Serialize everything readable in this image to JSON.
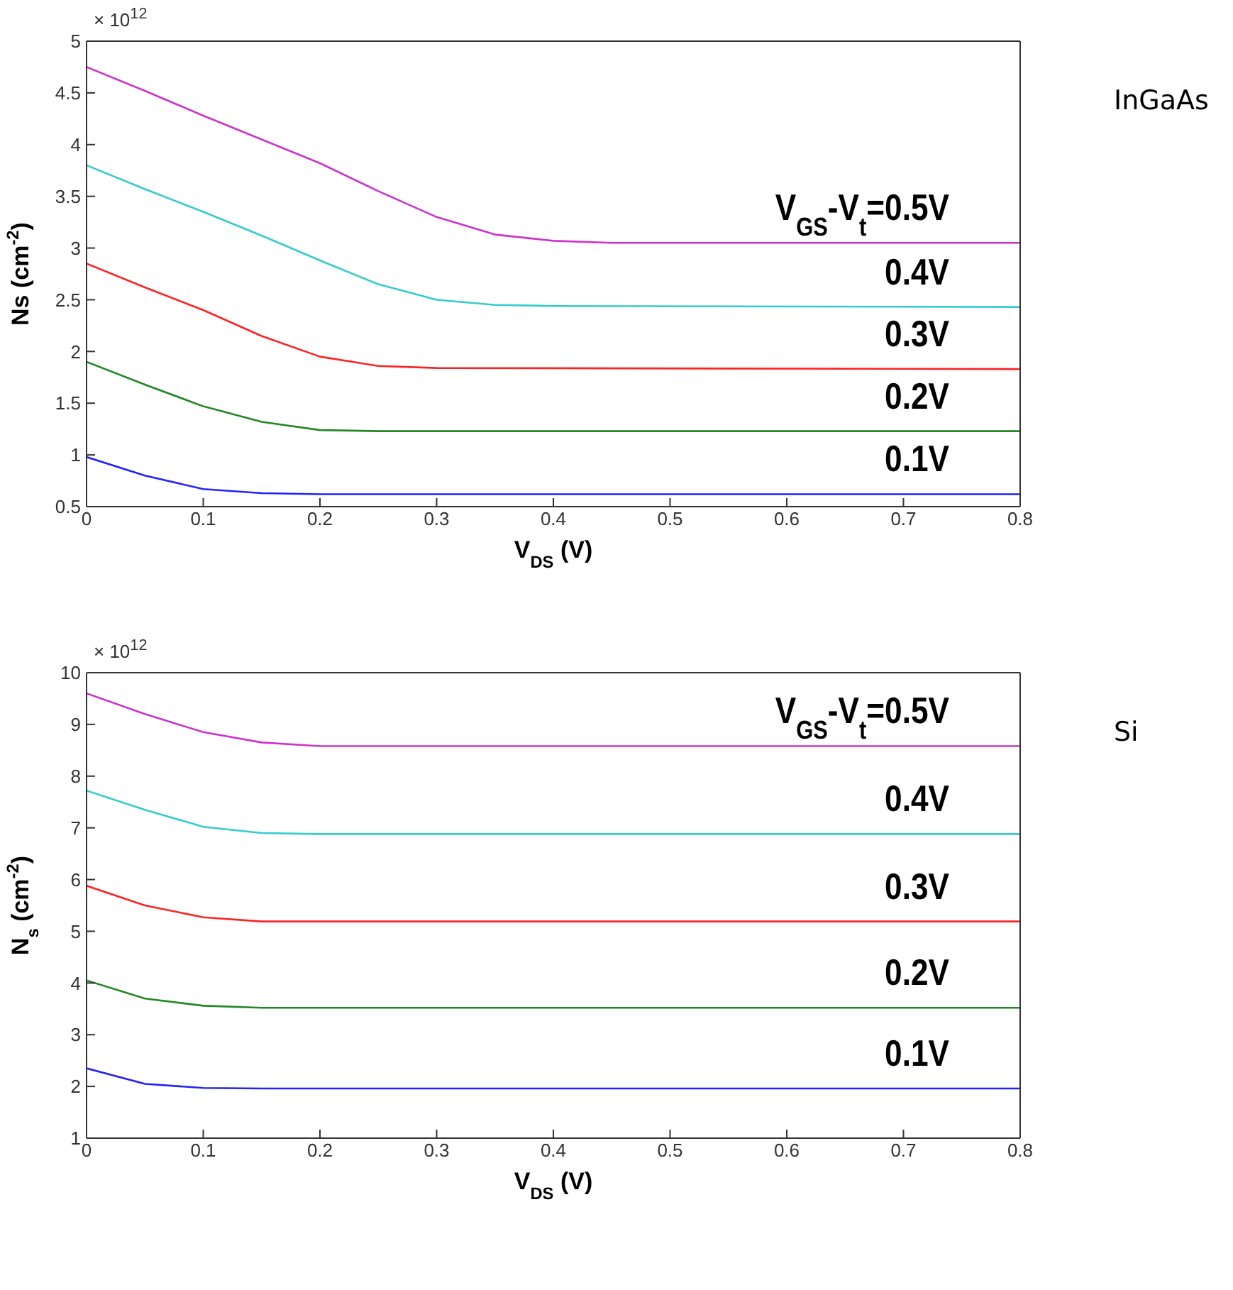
{
  "chart_data": [
    {
      "type": "line",
      "xlabel": "V$_{DS}$ (V)",
      "ylabel": "Ns (cm$^{-2}$)",
      "annotations": [
        "× 10$^{12}$",
        "InGaAs"
      ],
      "xlim": [
        0,
        0.8
      ],
      "xticks": [
        0,
        0.1,
        0.2,
        0.3,
        0.4,
        0.5,
        0.6,
        0.7,
        0.8
      ],
      "ylim": [
        0.5,
        5
      ],
      "yticks": [
        0.5,
        1,
        1.5,
        2,
        2.5,
        3,
        3.5,
        4,
        4.5,
        5
      ],
      "line_style": "solid",
      "series": [
        {
          "name": "V$_{GS}$-V$_{t}$=0.5V",
          "color": "#cc33cc",
          "x": [
            0,
            0.05,
            0.1,
            0.15,
            0.2,
            0.25,
            0.3,
            0.35,
            0.4,
            0.45,
            0.8
          ],
          "values": [
            4.75,
            4.52,
            4.28,
            4.05,
            3.82,
            3.55,
            3.3,
            3.13,
            3.07,
            3.05,
            3.05
          ]
        },
        {
          "name": "0.4V",
          "color": "#33cccc",
          "x": [
            0,
            0.05,
            0.1,
            0.15,
            0.2,
            0.25,
            0.3,
            0.35,
            0.4,
            0.8
          ],
          "values": [
            3.8,
            3.57,
            3.35,
            3.12,
            2.88,
            2.65,
            2.5,
            2.45,
            2.44,
            2.43
          ]
        },
        {
          "name": "0.3V",
          "color": "#ff2222",
          "x": [
            0,
            0.05,
            0.1,
            0.15,
            0.2,
            0.25,
            0.3,
            0.8
          ],
          "values": [
            2.85,
            2.62,
            2.4,
            2.15,
            1.95,
            1.86,
            1.84,
            1.83
          ]
        },
        {
          "name": "0.2V",
          "color": "#228822",
          "x": [
            0,
            0.05,
            0.1,
            0.15,
            0.2,
            0.25,
            0.8
          ],
          "values": [
            1.9,
            1.68,
            1.47,
            1.32,
            1.24,
            1.23,
            1.23
          ]
        },
        {
          "name": "0.1V",
          "color": "#2222ff",
          "x": [
            0,
            0.05,
            0.1,
            0.15,
            0.2,
            0.8
          ],
          "values": [
            0.98,
            0.8,
            0.67,
            0.63,
            0.62,
            0.62
          ]
        }
      ]
    },
    {
      "type": "line",
      "xlabel": "V$_{DS}$ (V)",
      "ylabel": "N$_{s}$ (cm$^{-2}$)",
      "annotations": [
        "× 10$^{12}$",
        "Si"
      ],
      "xlim": [
        0,
        0.8
      ],
      "xticks": [
        0,
        0.1,
        0.2,
        0.3,
        0.4,
        0.5,
        0.6,
        0.7,
        0.8
      ],
      "ylim": [
        1,
        10
      ],
      "yticks": [
        1,
        2,
        3,
        4,
        5,
        6,
        7,
        8,
        9,
        10
      ],
      "line_style": "solid",
      "series": [
        {
          "name": "V$_{GS}$-V$_{t}$=0.5V",
          "color": "#cc33cc",
          "x": [
            0,
            0.05,
            0.1,
            0.15,
            0.2,
            0.8
          ],
          "values": [
            9.6,
            9.2,
            8.85,
            8.65,
            8.58,
            8.58
          ]
        },
        {
          "name": "0.4V",
          "color": "#33cccc",
          "x": [
            0,
            0.05,
            0.1,
            0.15,
            0.2,
            0.8
          ],
          "values": [
            7.72,
            7.35,
            7.02,
            6.9,
            6.88,
            6.88
          ]
        },
        {
          "name": "0.3V",
          "color": "#ff2222",
          "x": [
            0,
            0.05,
            0.1,
            0.15,
            0.8
          ],
          "values": [
            5.88,
            5.5,
            5.27,
            5.19,
            5.19
          ]
        },
        {
          "name": "0.2V",
          "color": "#228822",
          "x": [
            0,
            0.05,
            0.1,
            0.15,
            0.8
          ],
          "values": [
            4.05,
            3.7,
            3.56,
            3.52,
            3.52
          ]
        },
        {
          "name": "0.1V",
          "color": "#2222ff",
          "x": [
            0,
            0.05,
            0.1,
            0.15,
            0.8
          ],
          "values": [
            2.35,
            2.05,
            1.97,
            1.96,
            1.96
          ]
        }
      ]
    }
  ]
}
